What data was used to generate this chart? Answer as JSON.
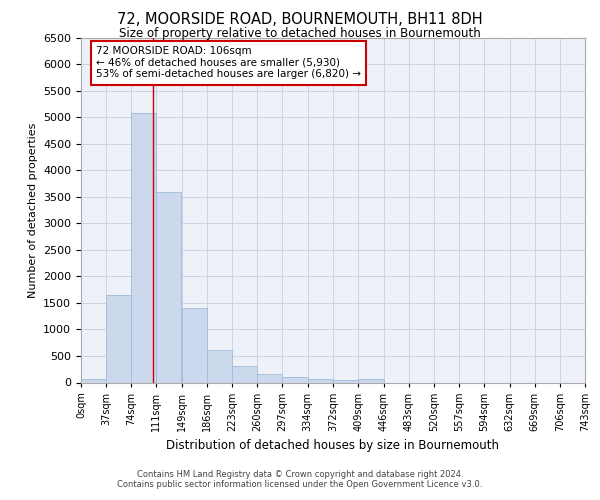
{
  "title": "72, MOORSIDE ROAD, BOURNEMOUTH, BH11 8DH",
  "subtitle": "Size of property relative to detached houses in Bournemouth",
  "xlabel": "Distribution of detached houses by size in Bournemouth",
  "ylabel": "Number of detached properties",
  "bar_color": "#ccd9ed",
  "bar_edge_color": "#a0bcd8",
  "grid_color": "#c8d4e4",
  "background_color": "#eef2f8",
  "vline_x": 106,
  "vline_color": "#cc0000",
  "bin_edges": [
    0,
    37,
    74,
    111,
    149,
    186,
    223,
    260,
    297,
    334,
    372,
    409,
    446,
    483,
    520,
    557,
    594,
    632,
    669,
    706,
    743
  ],
  "bar_heights": [
    75,
    1650,
    5080,
    3590,
    1410,
    615,
    310,
    155,
    95,
    60,
    55,
    60,
    0,
    0,
    0,
    0,
    0,
    0,
    0,
    0
  ],
  "tick_labels": [
    "0sqm",
    "37sqm",
    "74sqm",
    "111sqm",
    "149sqm",
    "186sqm",
    "223sqm",
    "260sqm",
    "297sqm",
    "334sqm",
    "372sqm",
    "409sqm",
    "446sqm",
    "483sqm",
    "520sqm",
    "557sqm",
    "594sqm",
    "632sqm",
    "669sqm",
    "706sqm",
    "743sqm"
  ],
  "ylim": [
    0,
    6500
  ],
  "yticks": [
    0,
    500,
    1000,
    1500,
    2000,
    2500,
    3000,
    3500,
    4000,
    4500,
    5000,
    5500,
    6000,
    6500
  ],
  "annotation_text": "72 MOORSIDE ROAD: 106sqm\n← 46% of detached houses are smaller (5,930)\n53% of semi-detached houses are larger (6,820) →",
  "annotation_box_color": "#ffffff",
  "annotation_border_color": "#cc0000",
  "footer_line1": "Contains HM Land Registry data © Crown copyright and database right 2024.",
  "footer_line2": "Contains public sector information licensed under the Open Government Licence v3.0."
}
